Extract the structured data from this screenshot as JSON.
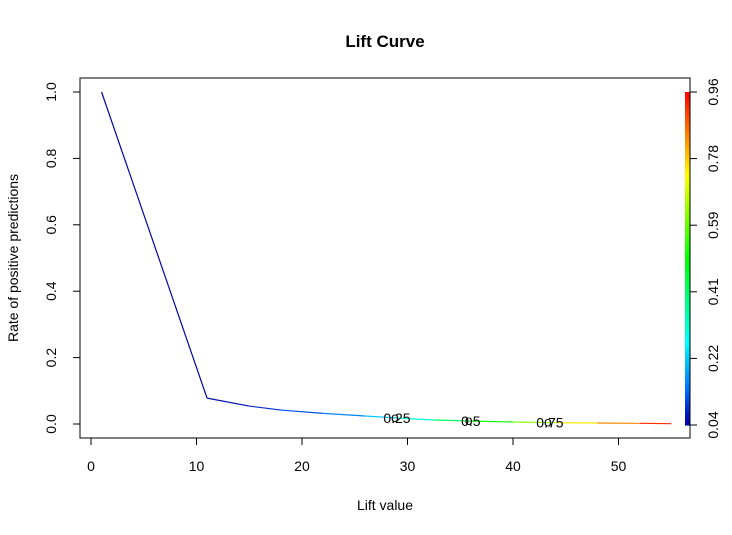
{
  "chart_data": {
    "type": "line",
    "title": "Lift Curve",
    "xlabel": "Lift value",
    "ylabel": "Rate of positive predictions",
    "xlim": [
      0,
      56
    ],
    "ylim": [
      0,
      1
    ],
    "x_ticks": [
      0,
      10,
      20,
      30,
      40,
      50
    ],
    "y_ticks": [
      0.0,
      0.2,
      0.4,
      0.6,
      0.8,
      1.0
    ],
    "y_tick_labels": [
      "0.0",
      "0.2",
      "0.4",
      "0.6",
      "0.8",
      "1.0"
    ],
    "colorbar_ticks": [
      "0.04",
      "0.22",
      "0.41",
      "0.59",
      "0.78",
      "0.96"
    ],
    "colorbar_range": [
      0.04,
      0.96
    ],
    "grid": false,
    "series": [
      {
        "x": [
          1.0,
          11.0,
          15.0,
          18.0,
          22.0,
          26.0,
          29.0,
          32.5,
          36.0,
          40.0,
          44.0,
          48.0,
          52.0,
          55.0
        ],
        "y": [
          1.0,
          0.078,
          0.054,
          0.042,
          0.032,
          0.024,
          0.018,
          0.012,
          0.009,
          0.006,
          0.004,
          0.003,
          0.002,
          0.001
        ],
        "cutoff": [
          0.04,
          0.05,
          0.07,
          0.1,
          0.14,
          0.18,
          0.26,
          0.36,
          0.46,
          0.56,
          0.7,
          0.8,
          0.88,
          0.96
        ]
      }
    ],
    "annotations": [
      {
        "text": "0.25",
        "x": 29.0,
        "y": 0.018
      },
      {
        "text": "0.5",
        "x": 36.0,
        "y": 0.009
      },
      {
        "text": "0.75",
        "x": 43.5,
        "y": 0.004
      }
    ]
  }
}
